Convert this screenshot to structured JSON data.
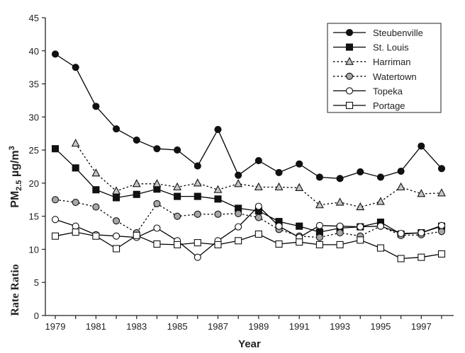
{
  "chart_data": {
    "type": "line",
    "title": "",
    "xlabel": "Year",
    "ylabel_main": "PM",
    "ylabel_sub": "2.5",
    "ylabel_unit": " µg/m",
    "ylabel_sup": "3",
    "side_note": "Rate Ratio",
    "xlim": [
      1979,
      1998
    ],
    "ylim": [
      0,
      45
    ],
    "x_ticks": [
      "1979",
      "1981",
      "1983",
      "1985",
      "1987",
      "1989",
      "1991",
      "1993",
      "1995",
      "1997"
    ],
    "y_ticks": [
      "0",
      "5",
      "10",
      "15",
      "20",
      "25",
      "30",
      "35",
      "40",
      "45"
    ],
    "grid": false,
    "legend_position": "top-right",
    "x": [
      1979,
      1980,
      1981,
      1982,
      1983,
      1984,
      1985,
      1986,
      1987,
      1988,
      1989,
      1990,
      1991,
      1992,
      1993,
      1994,
      1995,
      1996,
      1997,
      1998
    ],
    "series": [
      {
        "name": "Steubenville",
        "marker": "circle-filled",
        "dash": "solid",
        "color": "#000000",
        "values": [
          39.5,
          37.5,
          31.6,
          28.2,
          26.5,
          25.2,
          25.0,
          22.6,
          28.1,
          21.2,
          23.4,
          21.6,
          22.9,
          20.9,
          20.7,
          21.7,
          20.9,
          21.8,
          25.6,
          22.2
        ]
      },
      {
        "name": "St. Louis",
        "marker": "square-filled",
        "dash": "solid",
        "color": "#000000",
        "values": [
          25.2,
          22.3,
          19.0,
          17.8,
          18.3,
          19.1,
          18.0,
          18.0,
          17.6,
          16.2,
          15.8,
          14.2,
          13.5,
          12.6,
          13.2,
          13.4,
          14.1,
          12.3,
          12.5,
          13.5
        ]
      },
      {
        "name": "Harriman",
        "marker": "triangle-gray",
        "dash": "dotted",
        "color": "#000000",
        "values": [
          null,
          26.0,
          21.5,
          18.8,
          19.9,
          19.9,
          19.4,
          20.0,
          19.0,
          19.9,
          19.4,
          19.4,
          19.3,
          16.7,
          17.1,
          16.4,
          17.2,
          19.4,
          18.4,
          18.5
        ]
      },
      {
        "name": "Watertown",
        "marker": "circle-gray",
        "dash": "dotted",
        "color": "#000000",
        "values": [
          17.5,
          17.1,
          16.4,
          14.3,
          12.5,
          16.9,
          15.0,
          15.3,
          15.3,
          15.4,
          14.8,
          13.0,
          12.0,
          11.8,
          12.5,
          12.0,
          13.5,
          12.1,
          12.2,
          12.7
        ]
      },
      {
        "name": "Topeka",
        "marker": "circle-open",
        "dash": "solid",
        "color": "#000000",
        "values": [
          14.5,
          13.5,
          12.2,
          12.0,
          11.8,
          13.2,
          11.3,
          8.8,
          11.3,
          13.4,
          16.5,
          13.5,
          11.8,
          13.6,
          13.5,
          13.4,
          13.5,
          12.4,
          12.5,
          13.6
        ]
      },
      {
        "name": "Portage",
        "marker": "square-open",
        "dash": "solid",
        "color": "#000000",
        "values": [
          12.0,
          12.6,
          12.0,
          10.1,
          12.1,
          10.8,
          10.7,
          11.0,
          10.7,
          11.3,
          12.3,
          10.8,
          11.1,
          10.7,
          10.7,
          11.4,
          10.2,
          8.6,
          8.8,
          9.3
        ]
      }
    ]
  }
}
